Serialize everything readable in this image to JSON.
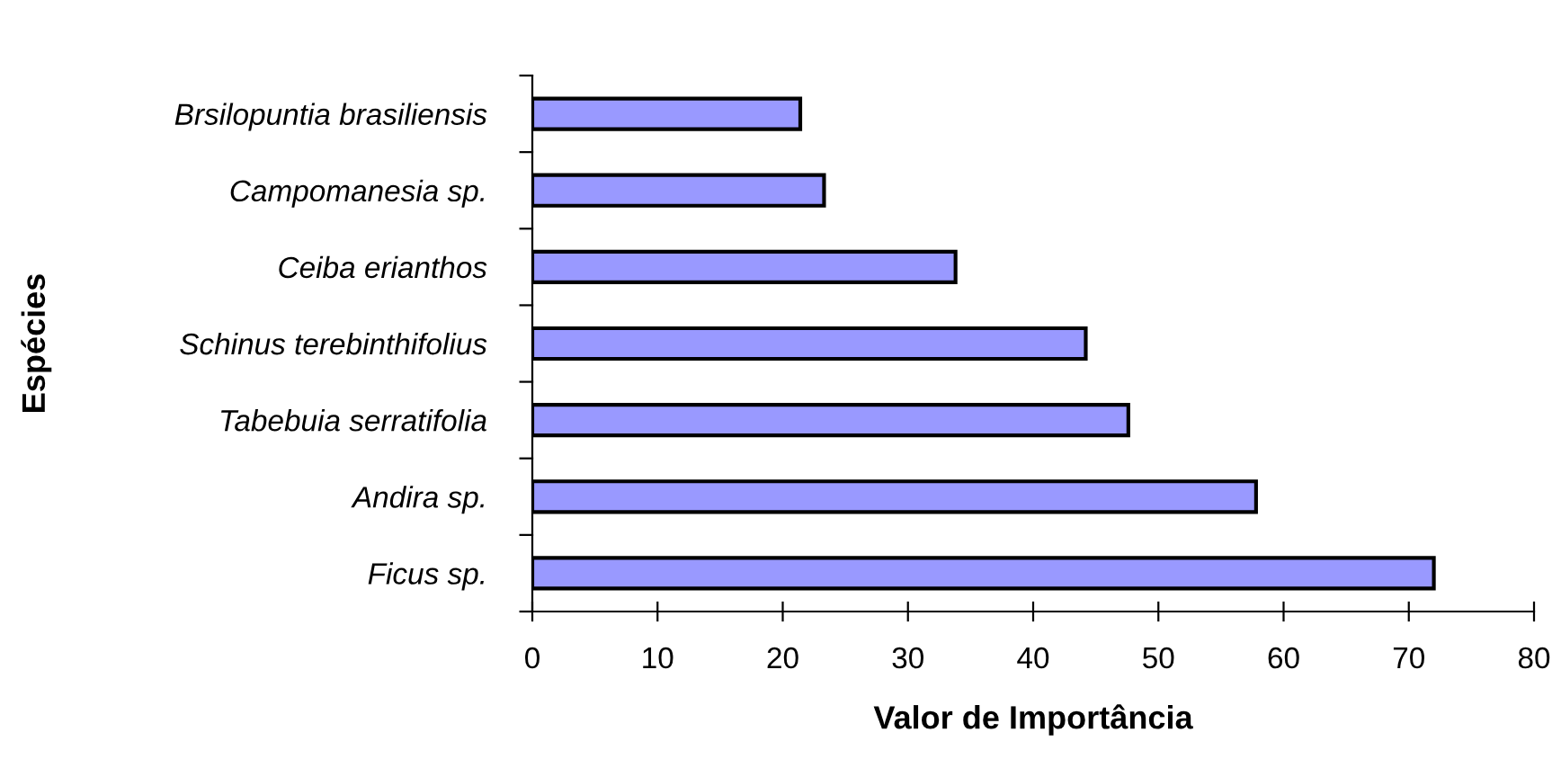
{
  "chart_data": {
    "type": "bar",
    "orientation": "horizontal",
    "xlabel": "Valor de Importância",
    "ylabel": "Espécies",
    "categories": [
      "Brsilopuntia brasiliensis",
      "Campomanesia sp.",
      "Ceiba erianthos",
      "Schinus terebinthifolius",
      "Tabebuia serratifolia",
      "Andira sp.",
      "Ficus sp."
    ],
    "values": [
      21.4,
      23.3,
      33.8,
      44.2,
      47.6,
      57.8,
      72.0
    ],
    "color": "#9999ff",
    "xlim": [
      0,
      80
    ],
    "xticks": [
      0,
      10,
      20,
      30,
      40,
      50,
      60,
      70,
      80
    ],
    "grid": false,
    "legend": false
  }
}
